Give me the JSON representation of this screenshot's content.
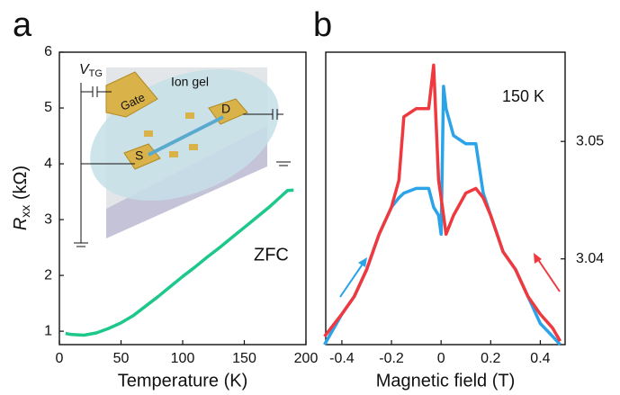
{
  "chart_data": [
    {
      "type": "line",
      "panel": "a",
      "xlabel": "Temperature (K)",
      "ylabel": {
        "symbol": "R",
        "subscript": "xx",
        "unit": " (kΩ)"
      },
      "annotation": "ZFC",
      "inset": {
        "gel": "Ion gel",
        "gate": "Gate",
        "drain": "D",
        "source": "S",
        "voltage": {
          "symbol": "V",
          "subscript": "TG"
        }
      },
      "x": [
        5,
        10,
        20,
        30,
        40,
        50,
        60,
        70,
        80,
        90,
        100,
        110,
        120,
        130,
        140,
        150,
        160,
        170,
        180,
        185,
        190
      ],
      "values": [
        0.96,
        0.94,
        0.93,
        0.97,
        1.05,
        1.15,
        1.28,
        1.45,
        1.62,
        1.8,
        1.98,
        2.15,
        2.33,
        2.5,
        2.68,
        2.86,
        3.04,
        3.22,
        3.42,
        3.52,
        3.53
      ],
      "color": "#1ec88a",
      "xlim": [
        0,
        200
      ],
      "xticks": [
        0,
        50,
        100,
        150,
        200
      ],
      "ylim": [
        0.76,
        6
      ],
      "yticks": [
        1,
        2,
        3,
        4,
        5,
        6
      ]
    },
    {
      "type": "line",
      "panel": "b",
      "xlabel": "Magnetic field (T)",
      "annotation": "150 K",
      "x": [
        -0.47,
        -0.4,
        -0.35,
        -0.3,
        -0.25,
        -0.2,
        -0.17,
        -0.15,
        -0.1,
        -0.05,
        -0.03,
        -0.01,
        0,
        0.01,
        0.02,
        0.05,
        0.1,
        0.14,
        0.17,
        0.2,
        0.25,
        0.3,
        0.35,
        0.4,
        0.45,
        0.48
      ],
      "series": [
        {
          "color": "#2ba3e8",
          "axis": "y2",
          "values": [
            3.0327,
            3.0353,
            3.0368,
            3.0391,
            3.0421,
            3.0444,
            3.0452,
            3.0456,
            3.046,
            3.046,
            3.0444,
            3.0437,
            3.0421,
            3.0547,
            3.0528,
            3.0505,
            3.0498,
            3.0498,
            3.0456,
            3.0437,
            3.0406,
            3.0391,
            3.0368,
            3.0345,
            3.0334,
            3.0327
          ]
        },
        {
          "color": "#f0393f",
          "axis": "y2",
          "values": [
            3.0334,
            3.0353,
            3.0368,
            3.0391,
            3.0421,
            3.0444,
            3.0467,
            3.0521,
            3.0528,
            3.0528,
            3.0565,
            3.0467,
            3.0452,
            3.0437,
            3.0421,
            3.0437,
            3.0456,
            3.046,
            3.0452,
            3.0437,
            3.0406,
            3.0391,
            3.0368,
            3.0353,
            3.0341,
            3.033
          ]
        }
      ],
      "xlim": [
        -0.465,
        0.5
      ],
      "xticks": [
        -0.4,
        -0.2,
        0.0,
        0.2,
        0.4
      ],
      "y2lim": [
        3.0327,
        3.0576
      ],
      "y2ticks": [
        3.04,
        3.05
      ]
    }
  ]
}
